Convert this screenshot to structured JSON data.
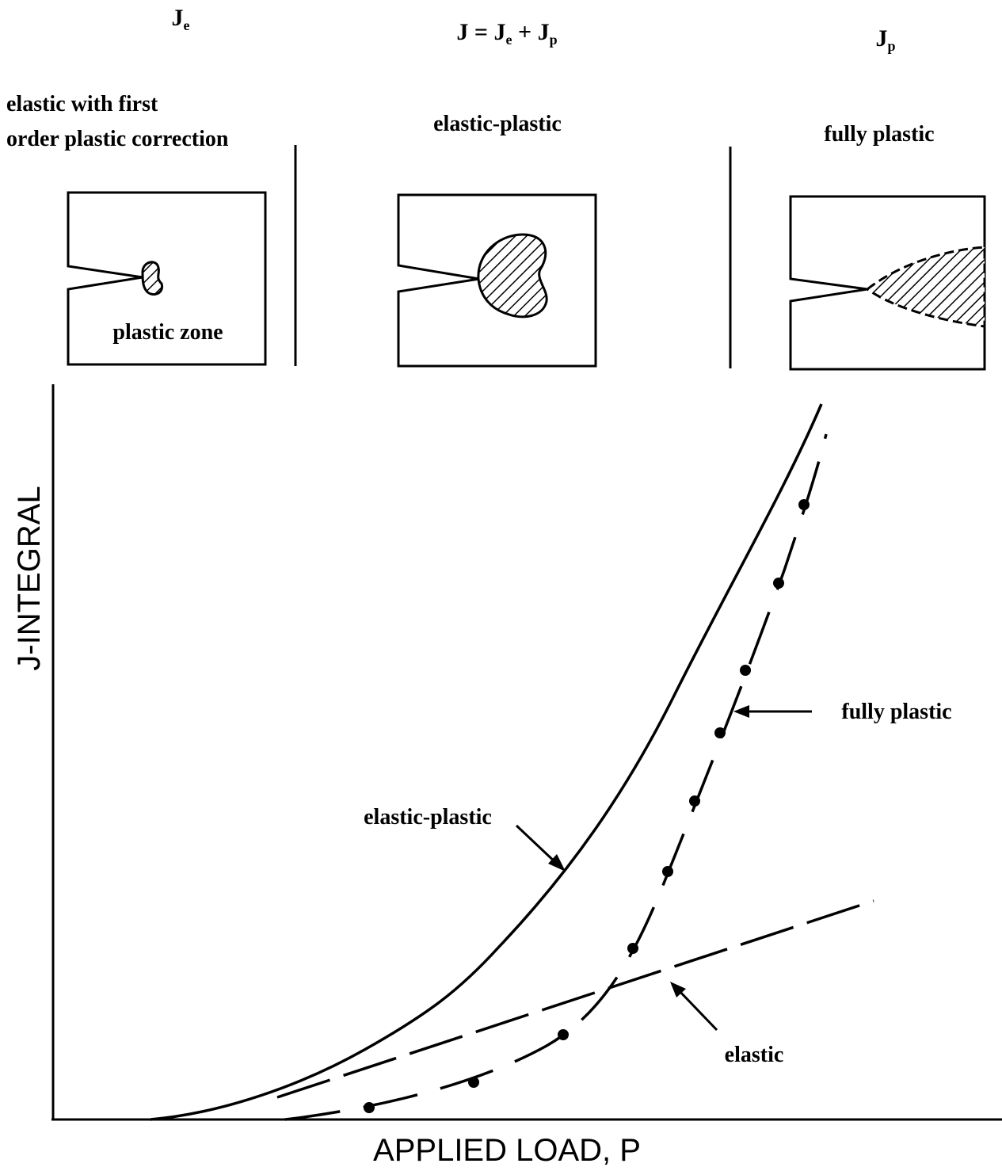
{
  "headers": {
    "left": [
      {
        "text": "J"
      },
      {
        "text": "e",
        "sub": true
      }
    ],
    "middle": [
      {
        "text": "J = J"
      },
      {
        "text": "e",
        "sub": true
      },
      {
        "text": " + J"
      },
      {
        "text": "p",
        "sub": true
      }
    ],
    "right": [
      {
        "text": "J"
      },
      {
        "text": "p",
        "sub": true
      }
    ]
  },
  "regions": [
    {
      "lines": [
        "elastic with first",
        "order plastic correction"
      ]
    },
    {
      "lines": [
        "elastic-plastic"
      ]
    },
    {
      "lines": [
        "fully plastic"
      ]
    }
  ],
  "plastic_zone_label": "plastic zone",
  "axes": {
    "x_label": "APPLIED LOAD, P",
    "y_label": "J-INTEGRAL"
  },
  "curves": {
    "elastic_plastic": "elastic-plastic",
    "fully_plastic": "fully plastic",
    "elastic": "elastic"
  }
}
